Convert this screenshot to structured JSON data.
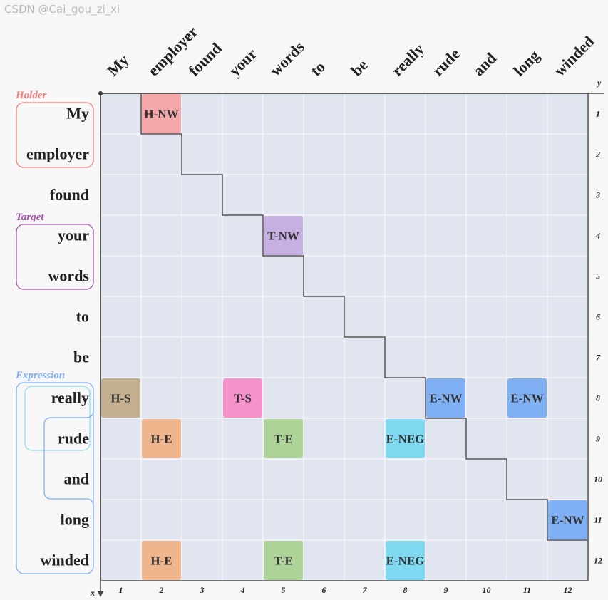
{
  "words": [
    "My",
    "employer",
    "found",
    "your",
    "words",
    "to",
    "be",
    "really",
    "rude",
    "and",
    "long",
    "winded"
  ],
  "axis": {
    "x_label": "x",
    "y_label": "y",
    "indices": [
      "1",
      "2",
      "3",
      "4",
      "5",
      "6",
      "7",
      "8",
      "9",
      "10",
      "11",
      "12"
    ]
  },
  "groups": [
    {
      "label": "Holder",
      "color": "#f47c7c"
    },
    {
      "label": "Target",
      "color": "#a855a8"
    },
    {
      "label": "Expression",
      "color": "#7fb0f5"
    }
  ],
  "cells": [
    {
      "row": 1,
      "col": 2,
      "tag": "H-NW",
      "color": "#f4a7a9"
    },
    {
      "row": 4,
      "col": 5,
      "tag": "T-NW",
      "color": "#c6b0e2"
    },
    {
      "row": 8,
      "col": 1,
      "tag": "H-S",
      "color": "#c4b091"
    },
    {
      "row": 8,
      "col": 4,
      "tag": "T-S",
      "color": "#f592c9"
    },
    {
      "row": 8,
      "col": 9,
      "tag": "E-NW",
      "color": "#7fb0f3"
    },
    {
      "row": 8,
      "col": 11,
      "tag": "E-NW",
      "color": "#7fb0f3"
    },
    {
      "row": 9,
      "col": 2,
      "tag": "H-E",
      "color": "#efb68e"
    },
    {
      "row": 9,
      "col": 5,
      "tag": "T-E",
      "color": "#add398"
    },
    {
      "row": 9,
      "col": 8,
      "tag": "E-NEG",
      "color": "#7fd9f1"
    },
    {
      "row": 11,
      "col": 12,
      "tag": "E-NW",
      "color": "#7fb0f3"
    },
    {
      "row": 12,
      "col": 2,
      "tag": "H-E",
      "color": "#efb68e"
    },
    {
      "row": 12,
      "col": 5,
      "tag": "T-E",
      "color": "#add398"
    },
    {
      "row": 12,
      "col": 8,
      "tag": "E-NEG",
      "color": "#7fd9f1"
    }
  ],
  "watermark": "CSDN @Cai_gou_zi_xi"
}
